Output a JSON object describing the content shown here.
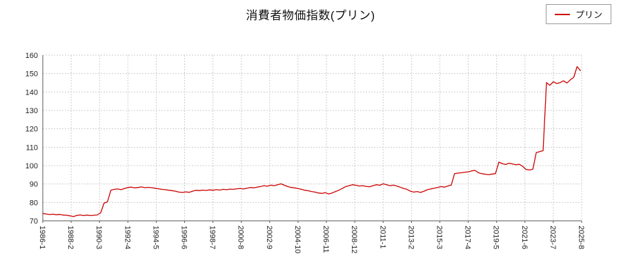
{
  "page": {
    "title": "消費者物価指数(プリン)"
  },
  "legend": {
    "label": "プリン",
    "color": "#cc0000"
  },
  "chart_data": {
    "type": "line",
    "title": "消費者物価指数(プリン)",
    "ylabel": "",
    "xlabel": "",
    "ylim": [
      70,
      160
    ],
    "y_tick_step": 10,
    "grid": true,
    "grid_style": "dashed",
    "legend_position": "top-right",
    "x_tick_labels": [
      "1986-1",
      "1988-2",
      "1990-3",
      "1992-4",
      "1994-5",
      "1996-6",
      "1998-7",
      "2000-8",
      "2002-9",
      "2004-10",
      "2006-11",
      "2008-12",
      "2011-1",
      "2013-2",
      "2015-3",
      "2017-4",
      "2019-5",
      "2021-6",
      "2023-7",
      "2025-8"
    ],
    "x_tick_interval_months": 25,
    "x_range_months": [
      0,
      475
    ],
    "series": [
      {
        "name": "プリン",
        "color": "#cc0000",
        "start_month_index": 0,
        "month_step": 3,
        "values": [
          74.0,
          73.7,
          73.4,
          73.6,
          73.3,
          73.5,
          73.1,
          73.0,
          72.7,
          72.3,
          72.9,
          73.2,
          72.8,
          73.1,
          72.8,
          73.0,
          73.2,
          74.3,
          79.6,
          80.3,
          86.6,
          87.1,
          87.3,
          86.9,
          87.6,
          88.1,
          88.3,
          87.9,
          88.1,
          88.4,
          88.0,
          88.2,
          88.0,
          87.7,
          87.4,
          87.1,
          86.9,
          86.6,
          86.4,
          86.1,
          85.6,
          85.4,
          85.7,
          85.5,
          86.1,
          86.6,
          86.4,
          86.7,
          86.5,
          86.8,
          86.6,
          86.9,
          86.7,
          87.1,
          86.9,
          87.2,
          87.1,
          87.4,
          87.6,
          87.3,
          87.7,
          88.1,
          87.9,
          88.3,
          88.6,
          89.1,
          88.8,
          89.4,
          89.1,
          89.6,
          90.1,
          89.3,
          88.6,
          88.1,
          87.9,
          87.5,
          87.1,
          86.6,
          86.3,
          85.9,
          85.6,
          85.1,
          84.9,
          85.3,
          84.6,
          85.1,
          85.9,
          86.6,
          87.6,
          88.6,
          89.1,
          89.6,
          89.3,
          88.9,
          89.1,
          88.7,
          88.5,
          89.1,
          89.6,
          89.3,
          90.1,
          89.6,
          89.1,
          89.4,
          88.9,
          88.3,
          87.6,
          87.1,
          86.1,
          85.6,
          85.9,
          85.4,
          86.1,
          86.9,
          87.3,
          87.7,
          88.1,
          88.6,
          88.3,
          88.9,
          89.4,
          95.6,
          95.9,
          96.1,
          96.4,
          96.6,
          97.1,
          97.4,
          96.1,
          95.6,
          95.3,
          95.1,
          95.4,
          95.6,
          101.9,
          101.1,
          100.6,
          101.3,
          100.9,
          100.5,
          100.7,
          99.6,
          97.9,
          97.6,
          98.1,
          107.1,
          107.6,
          108.1,
          145.1,
          143.6,
          145.6,
          144.6,
          145.1,
          146.1,
          144.9,
          146.6,
          148.0,
          153.8,
          151.5
        ]
      }
    ]
  }
}
